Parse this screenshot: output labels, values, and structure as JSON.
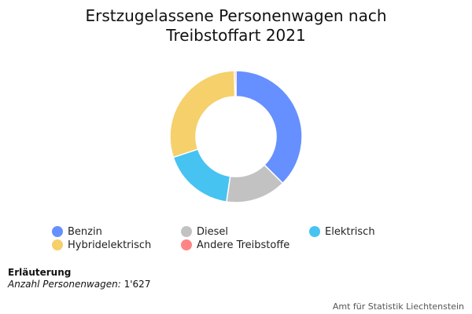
{
  "chart_data": {
    "type": "pie",
    "title_lines": [
      "Erstzugelassene Personenwagen nach",
      "Treibstoffart 2021"
    ],
    "series": [
      {
        "name": "Benzin",
        "value": 37.5,
        "color": "#6690ff"
      },
      {
        "name": "Diesel",
        "value": 14.8,
        "color": "#c2c2c2"
      },
      {
        "name": "Elektrisch",
        "value": 17.6,
        "color": "#47c3f2"
      },
      {
        "name": "Hybridelektrisch",
        "value": 29.7,
        "color": "#f5d06b"
      },
      {
        "name": "Andere Treibstoffe",
        "value": 0.4,
        "color": "#ff8585"
      }
    ],
    "legend_position": "bottom",
    "donut": true
  },
  "note": {
    "heading": "Erläuterung",
    "count_label": "Anzahl Personenwagen:",
    "count_value": "1'627"
  },
  "credit": "Amt für Statistik Liechtenstein"
}
